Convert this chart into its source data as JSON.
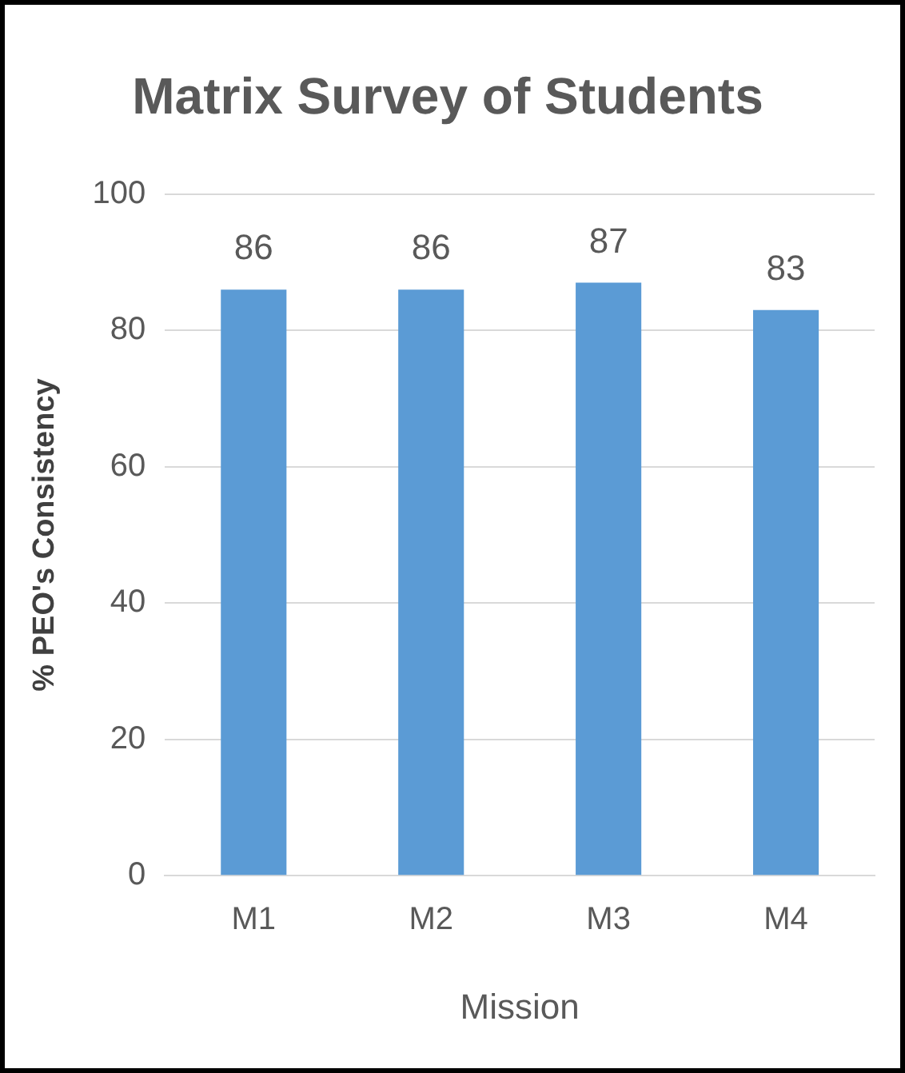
{
  "chart_data": {
    "type": "bar",
    "title": "Matrix Survey of Students",
    "xlabel": "Mission",
    "ylabel": "% PEO's Consistency",
    "categories": [
      "M1",
      "M2",
      "M3",
      "M4"
    ],
    "values": [
      86,
      86,
      87,
      83
    ],
    "color": "#5b9bd5",
    "ylim": [
      0,
      100
    ],
    "yticks": [
      0,
      20,
      40,
      60,
      80,
      100
    ],
    "grid": "y",
    "data_labels": true,
    "legend": false
  }
}
